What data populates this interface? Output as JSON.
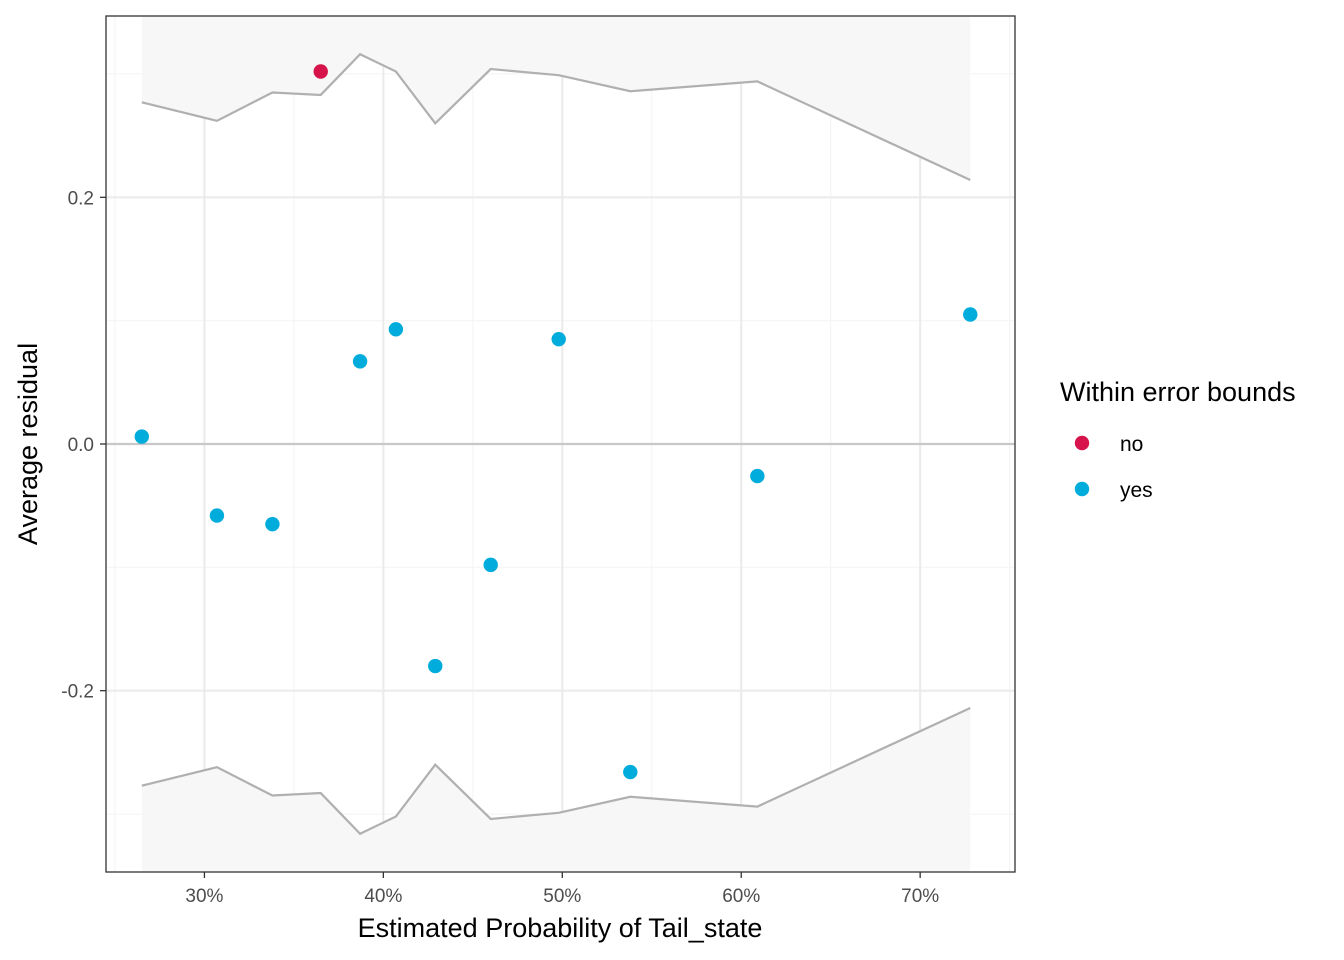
{
  "chart_data": {
    "type": "scatter",
    "title": "",
    "xlabel": "Estimated Probability of Tail_state",
    "ylabel": "Average residual",
    "x_unit": "percent",
    "xlim": [
      0.245,
      0.753
    ],
    "ylim": [
      -0.347,
      0.347
    ],
    "x_ticks": [
      {
        "value": 0.3,
        "label": "30%"
      },
      {
        "value": 0.4,
        "label": "40%"
      },
      {
        "value": 0.5,
        "label": "50%"
      },
      {
        "value": 0.6,
        "label": "60%"
      },
      {
        "value": 0.7,
        "label": "70%"
      }
    ],
    "y_ticks": [
      {
        "value": -0.2,
        "label": "-0.2"
      },
      {
        "value": 0.0,
        "label": "0.0"
      },
      {
        "value": 0.2,
        "label": "0.2"
      }
    ],
    "x_minor_breaks": [
      0.25,
      0.35,
      0.45,
      0.55,
      0.65,
      0.75
    ],
    "y_minor_breaks": [
      -0.3,
      -0.1,
      0.1,
      0.3
    ],
    "grid": true,
    "reference_line_y": 0.0,
    "bounds": {
      "x": [
        0.265,
        0.307,
        0.338,
        0.365,
        0.387,
        0.407,
        0.429,
        0.46,
        0.498,
        0.538,
        0.609,
        0.728
      ],
      "upper": [
        0.277,
        0.262,
        0.285,
        0.283,
        0.316,
        0.302,
        0.26,
        0.304,
        0.299,
        0.286,
        0.294,
        0.214
      ],
      "lower": [
        -0.277,
        -0.262,
        -0.285,
        -0.283,
        -0.316,
        -0.302,
        -0.26,
        -0.304,
        -0.299,
        -0.286,
        -0.294,
        -0.214
      ]
    },
    "points": [
      {
        "x": 0.265,
        "y": 0.006,
        "within": "yes"
      },
      {
        "x": 0.307,
        "y": -0.058,
        "within": "yes"
      },
      {
        "x": 0.338,
        "y": -0.065,
        "within": "yes"
      },
      {
        "x": 0.365,
        "y": 0.302,
        "within": "no"
      },
      {
        "x": 0.387,
        "y": 0.067,
        "within": "yes"
      },
      {
        "x": 0.407,
        "y": 0.093,
        "within": "yes"
      },
      {
        "x": 0.429,
        "y": -0.18,
        "within": "yes"
      },
      {
        "x": 0.46,
        "y": -0.098,
        "within": "yes"
      },
      {
        "x": 0.498,
        "y": 0.085,
        "within": "yes"
      },
      {
        "x": 0.538,
        "y": -0.266,
        "within": "yes"
      },
      {
        "x": 0.609,
        "y": -0.026,
        "within": "yes"
      },
      {
        "x": 0.728,
        "y": 0.105,
        "within": "yes"
      }
    ],
    "legend": {
      "title": "Within error bounds",
      "placement": "right",
      "items": [
        {
          "key": "no",
          "label": "no",
          "color": "#d6134a"
        },
        {
          "key": "yes",
          "label": "yes",
          "color": "#00acdb"
        }
      ]
    },
    "colors": {
      "bound_line": "#b0b0b0",
      "bound_fill": "#f7f7f7",
      "grid_major": "#ebebeb",
      "grid_minor": "#f4f4f4",
      "zero_line": "#c8c8c8",
      "panel_border": "#333333"
    }
  }
}
